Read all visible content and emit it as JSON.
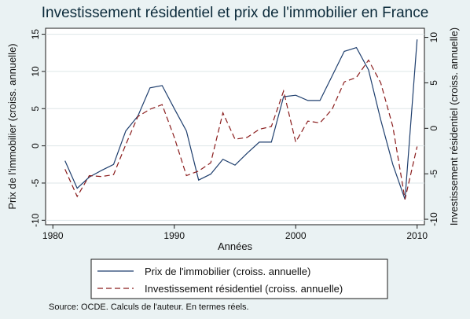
{
  "chart_data": {
    "type": "line",
    "title": "Investissement résidentiel et prix de l'immobilier en France",
    "xlabel": "Années",
    "ylabel_left": "Prix de l'immobilier (croiss. annuelle)",
    "ylabel_right": "Investissement résidentiel (croiss. annuelle)",
    "xlim": [
      1980,
      2010
    ],
    "ylim_left": [
      -10,
      15
    ],
    "ylim_right": [
      -10,
      10
    ],
    "xticks": [
      "1980",
      "1990",
      "2000",
      "2010"
    ],
    "yticks_left": [
      "-10",
      "-5",
      "0",
      "5",
      "10",
      "15"
    ],
    "yticks_right": [
      "-10",
      "-5",
      "0",
      "5",
      "10"
    ],
    "x": [
      1981,
      1982,
      1983,
      1984,
      1985,
      1986,
      1987,
      1988,
      1989,
      1990,
      1991,
      1992,
      1993,
      1994,
      1995,
      1996,
      1997,
      1998,
      1999,
      2000,
      2001,
      2002,
      2003,
      2004,
      2005,
      2006,
      2007,
      2008,
      2009,
      2010
    ],
    "series": [
      {
        "name": "Prix de l'immobilier (croiss. annuelle)",
        "axis": "left",
        "style": "solid",
        "color": "#1f3f6e",
        "values": [
          -2.0,
          -5.7,
          -4.2,
          -3.3,
          -2.5,
          2.0,
          4.0,
          7.8,
          8.1,
          5.0,
          2.0,
          -4.6,
          -3.8,
          -1.8,
          -2.6,
          -1.0,
          0.5,
          0.5,
          6.6,
          6.8,
          6.1,
          6.1,
          9.4,
          12.7,
          13.2,
          10.2,
          3.5,
          -2.5,
          -7.2,
          14.3
        ]
      },
      {
        "name": "Investissement résidentiel (croiss. annuelle)",
        "axis": "right",
        "style": "dashed",
        "color": "#8a1c1c",
        "values": [
          -4.5,
          -7.5,
          -5.2,
          -5.3,
          -5.1,
          -1.8,
          1.3,
          2.1,
          2.6,
          -1.0,
          -5.2,
          -4.7,
          -3.8,
          1.7,
          -1.2,
          -1.0,
          -0.1,
          0.2,
          4.1,
          -1.5,
          0.8,
          0.6,
          2.1,
          5.1,
          5.6,
          7.5,
          5.0,
          0.2,
          -7.8,
          -2.0
        ]
      }
    ],
    "legend_position": "bottom"
  },
  "source": "Source: OCDE. Calculs de l'auteur. En termes réels."
}
